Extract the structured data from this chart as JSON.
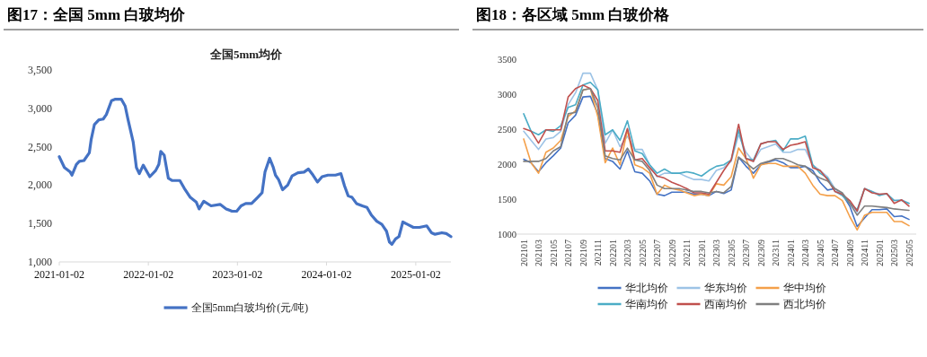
{
  "chart_data": [
    {
      "type": "line",
      "title": "图17：全国 5mm 白玻均价",
      "subtitle": "全国5mm均价",
      "legend": "bottom",
      "x": [
        "2021-01-02",
        "2021-01-23",
        "2021-02-16",
        "2021-02-23",
        "2021-03-13",
        "2021-03-25",
        "2021-04-13",
        "2021-05-05",
        "2021-05-13",
        "2021-05-26",
        "2021-06-13",
        "2021-07-01",
        "2021-07-14",
        "2021-08-04",
        "2021-08-20",
        "2021-09-13",
        "2021-09-29",
        "2021-10-11",
        "2021-11-01",
        "2021-11-14",
        "2021-11-26",
        "2021-12-12",
        "2022-01-08",
        "2022-02-01",
        "2022-02-14",
        "2022-02-22",
        "2022-03-08",
        "2022-03-25",
        "2022-04-10",
        "2022-05-11",
        "2022-05-29",
        "2022-06-23",
        "2022-07-17",
        "2022-07-29",
        "2022-08-17",
        "2022-09-16",
        "2022-10-23",
        "2022-11-17",
        "2022-12-11",
        "2022-12-30",
        "2023-01-17",
        "2023-02-05",
        "2023-03-01",
        "2023-03-26",
        "2023-04-13",
        "2023-04-25",
        "2023-05-14",
        "2023-05-29",
        "2023-06-07",
        "2023-06-20",
        "2023-07-06",
        "2023-07-27",
        "2023-08-14",
        "2023-09-07",
        "2023-10-02",
        "2023-10-20",
        "2023-11-08",
        "2023-11-26",
        "2023-12-15",
        "2024-01-08",
        "2024-02-08",
        "2024-03-01",
        "2024-03-16",
        "2024-03-31",
        "2024-04-16",
        "2024-05-04",
        "2024-05-28",
        "2024-06-16",
        "2024-07-04",
        "2024-07-26",
        "2024-08-16",
        "2024-09-04",
        "2024-09-16",
        "2024-09-26",
        "2024-10-11",
        "2024-10-25",
        "2024-11-10",
        "2024-11-29",
        "2024-12-23",
        "2025-01-17",
        "2025-02-16",
        "2025-03-07",
        "2025-03-22",
        "2025-04-19",
        "2025-05-07",
        "2025-05-26"
      ],
      "xlim": [
        "2021-01-02",
        "2025-05-26"
      ],
      "xticks": [
        {
          "value": "2021-01-02",
          "label": "2021-01-02"
        },
        {
          "value": "2022-01-02",
          "label": "2022-01-02"
        },
        {
          "value": "2023-01-02",
          "label": "2023-01-02"
        },
        {
          "value": "2024-01-02",
          "label": "2024-01-02"
        },
        {
          "value": "2025-01-02",
          "label": "2025-01-02"
        }
      ],
      "ylim": [
        1000,
        3500
      ],
      "yticks": [
        {
          "value": 1000,
          "label": "1,000"
        },
        {
          "value": 1500,
          "label": "1,500"
        },
        {
          "value": 2000,
          "label": "2,000"
        },
        {
          "value": 2500,
          "label": "2,500"
        },
        {
          "value": 3000,
          "label": "3,000"
        },
        {
          "value": 3500,
          "label": "3,500"
        }
      ],
      "series": [
        {
          "name": "全国5mm白玻均价(元/吨)",
          "color": "#4472c4",
          "values": [
            2370,
            2230,
            2170,
            2130,
            2270,
            2310,
            2320,
            2420,
            2600,
            2790,
            2850,
            2860,
            2920,
            3100,
            3120,
            3120,
            3030,
            2850,
            2560,
            2230,
            2150,
            2260,
            2110,
            2190,
            2270,
            2440,
            2390,
            2090,
            2060,
            2060,
            1960,
            1840,
            1780,
            1690,
            1790,
            1730,
            1750,
            1690,
            1660,
            1660,
            1730,
            1760,
            1760,
            1840,
            1900,
            2170,
            2350,
            2230,
            2130,
            2070,
            1940,
            2000,
            2120,
            2160,
            2170,
            2210,
            2130,
            2040,
            2110,
            2130,
            2130,
            2150,
            1990,
            1860,
            1840,
            1760,
            1730,
            1710,
            1610,
            1530,
            1490,
            1400,
            1260,
            1230,
            1300,
            1330,
            1520,
            1490,
            1450,
            1450,
            1470,
            1380,
            1360,
            1380,
            1370,
            1330
          ]
        }
      ]
    },
    {
      "type": "line",
      "title": "图18：各区域 5mm 白玻价格",
      "legend": "bottom",
      "categories": [
        "202101",
        null,
        "202103",
        null,
        "202105",
        null,
        "202107",
        null,
        "202109",
        null,
        "202111",
        null,
        "202201",
        null,
        "202203",
        null,
        "202205",
        null,
        "202207",
        null,
        "202209",
        null,
        "202211",
        null,
        "202301",
        null,
        "202303",
        null,
        "202305",
        null,
        "202307",
        null,
        "202309",
        null,
        "202311",
        null,
        "202401",
        null,
        "202403",
        null,
        "202405",
        null,
        "202407",
        null,
        "202409",
        null,
        "202411",
        null,
        "202501",
        null,
        "202503",
        null,
        "202505"
      ],
      "ylim": [
        1000,
        3500
      ],
      "yticks": [
        1000,
        1500,
        2000,
        2500,
        3000,
        3500
      ],
      "series": [
        {
          "name": "华北均价",
          "color": "#4472c4",
          "values": [
            2070,
            2020,
            1890,
            2020,
            2120,
            2230,
            2590,
            2700,
            2960,
            2970,
            2720,
            2080,
            2040,
            1930,
            2190,
            1890,
            1870,
            1760,
            1570,
            1550,
            1600,
            1600,
            1600,
            1570,
            1570,
            1550,
            1610,
            1580,
            1630,
            2100,
            1970,
            1870,
            1990,
            2030,
            2060,
            2020,
            1950,
            1950,
            1970,
            1910,
            1740,
            1630,
            1650,
            1570,
            1400,
            1110,
            1230,
            1350,
            1350,
            1360,
            1250,
            1260,
            1210
          ]
        },
        {
          "name": "华东均价",
          "color": "#9dc3e6",
          "values": [
            2470,
            2340,
            2210,
            2360,
            2380,
            2470,
            2850,
            3020,
            3300,
            3300,
            3060,
            2300,
            2490,
            2250,
            2400,
            2210,
            2210,
            1990,
            1820,
            1870,
            1870,
            1870,
            1820,
            1780,
            1780,
            1760,
            1910,
            1950,
            2040,
            2420,
            2170,
            2040,
            2210,
            2250,
            2290,
            2170,
            2170,
            2210,
            2210,
            1990,
            1910,
            1820,
            1650,
            1570,
            1460,
            1310,
            1650,
            1610,
            1570,
            1570,
            1480,
            1490,
            1440
          ]
        },
        {
          "name": "华中均价",
          "color": "#f4a04a",
          "values": [
            2360,
            2020,
            1870,
            2170,
            2230,
            2340,
            2680,
            2760,
            3060,
            3080,
            2680,
            2020,
            2230,
            1990,
            2490,
            1990,
            1950,
            1870,
            1570,
            1700,
            1650,
            1630,
            1590,
            1550,
            1570,
            1550,
            1720,
            1700,
            1820,
            2230,
            2080,
            1800,
            1990,
            2010,
            2010,
            1970,
            1970,
            1970,
            1870,
            1700,
            1570,
            1550,
            1550,
            1480,
            1250,
            1060,
            1270,
            1310,
            1310,
            1310,
            1180,
            1180,
            1120
          ]
        },
        {
          "name": "华南均价",
          "color": "#4bacc6",
          "values": [
            2720,
            2470,
            2420,
            2490,
            2470,
            2550,
            2810,
            2850,
            3130,
            3170,
            3060,
            2420,
            2490,
            2340,
            2620,
            2190,
            2150,
            1990,
            1870,
            1930,
            1870,
            1870,
            1890,
            1870,
            1830,
            1910,
            1970,
            1990,
            2060,
            2490,
            2080,
            2060,
            2290,
            2320,
            2340,
            2190,
            2360,
            2360,
            2400,
            1990,
            1870,
            1800,
            1610,
            1550,
            1440,
            1350,
            1650,
            1610,
            1550,
            1580,
            1480,
            1480,
            1440
          ]
        },
        {
          "name": "西南均价",
          "color": "#c0504d",
          "values": [
            2510,
            2470,
            2300,
            2490,
            2490,
            2490,
            2960,
            3080,
            3130,
            3080,
            2910,
            2190,
            2190,
            2170,
            2510,
            2060,
            2080,
            1950,
            1830,
            1800,
            1740,
            1700,
            1650,
            1590,
            1590,
            1570,
            1740,
            1910,
            2060,
            2570,
            2080,
            2040,
            2290,
            2320,
            2320,
            2210,
            2270,
            2290,
            2320,
            1950,
            1910,
            1780,
            1610,
            1570,
            1480,
            1330,
            1650,
            1590,
            1570,
            1580,
            1440,
            1490,
            1400
          ]
        },
        {
          "name": "西北均价",
          "color": "#7f7f7f",
          "values": [
            2040,
            2040,
            2040,
            2080,
            2190,
            2250,
            2720,
            2740,
            3060,
            3080,
            2810,
            2120,
            2080,
            2060,
            2230,
            2060,
            2040,
            1910,
            1700,
            1650,
            1650,
            1650,
            1630,
            1610,
            1610,
            1590,
            1610,
            1590,
            1680,
            2100,
            2020,
            1930,
            2010,
            2040,
            2080,
            2080,
            2040,
            1990,
            1970,
            1870,
            1800,
            1760,
            1650,
            1590,
            1440,
            1270,
            1400,
            1400,
            1390,
            1380,
            1360,
            1350,
            1340
          ]
        }
      ]
    }
  ]
}
